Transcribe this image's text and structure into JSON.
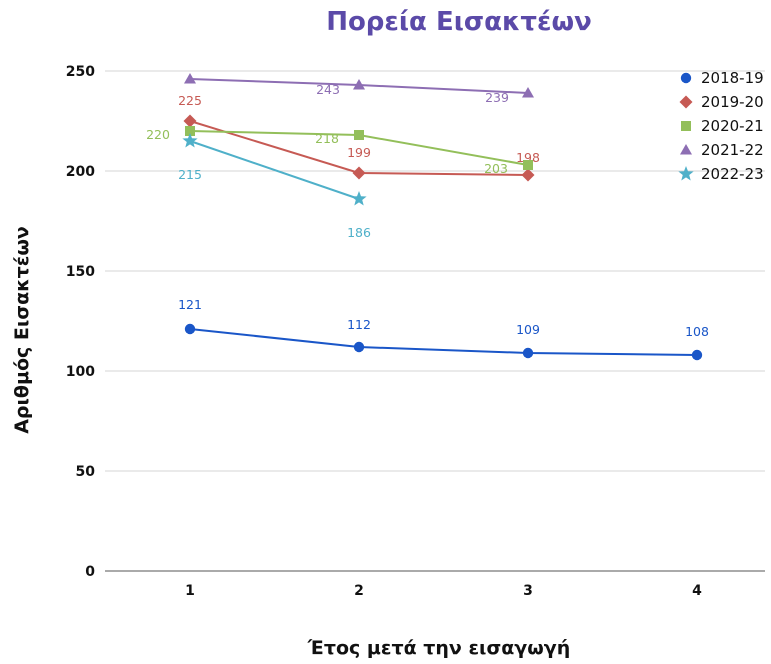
{
  "chart_data": {
    "type": "line",
    "title": "Πορεία Εισακτέων",
    "xlabel": "Έτος μετά την εισαγωγή",
    "ylabel": "Αριθμός Εισακτέων",
    "x": [
      1,
      2,
      3,
      4
    ],
    "ylim": [
      0,
      250
    ],
    "yticks": [
      0,
      50,
      100,
      150,
      200,
      250
    ],
    "grid": "horizontal",
    "legend": "top-right",
    "title_color": "#5b4aa8",
    "series": [
      {
        "name": "2018-19",
        "color": "#1a56c8",
        "marker": "circle",
        "values": [
          121,
          112,
          109,
          108
        ]
      },
      {
        "name": "2019-20",
        "color": "#c65a54",
        "marker": "diamond",
        "values": [
          225,
          199,
          198,
          null
        ]
      },
      {
        "name": "2020-21",
        "color": "#93bf5a",
        "marker": "square",
        "values": [
          220,
          218,
          203,
          null
        ]
      },
      {
        "name": "2021-22",
        "color": "#8d6eb3",
        "marker": "triangle",
        "values": [
          246,
          243,
          239,
          null
        ],
        "labeled": [
          false,
          true,
          true,
          false
        ]
      },
      {
        "name": "2022-23",
        "color": "#4fb0c9",
        "marker": "star",
        "values": [
          215,
          186,
          null,
          null
        ]
      }
    ]
  }
}
